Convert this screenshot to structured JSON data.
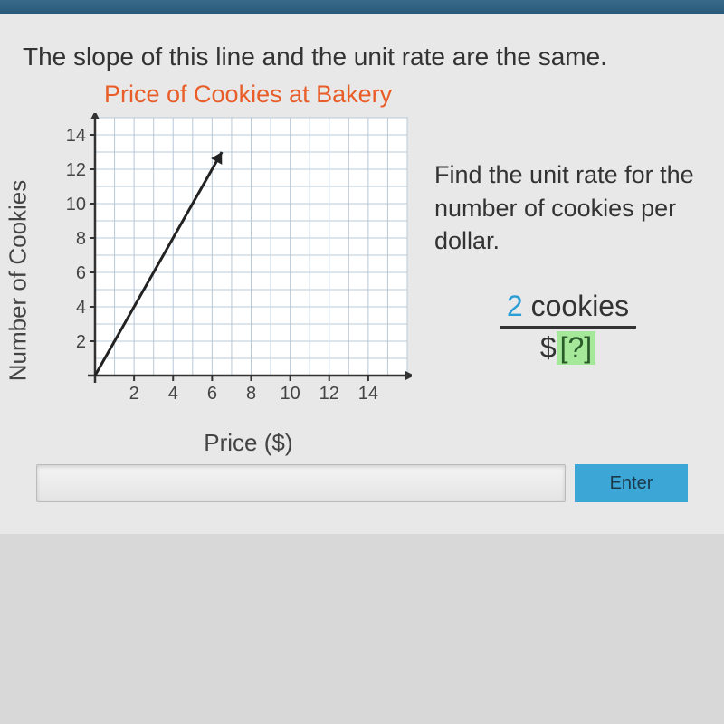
{
  "top_text": "The slope of this line and the unit rate are the same.",
  "chart": {
    "title": "Price of Cookies at Bakery",
    "x_label": "Price ($)",
    "y_label": "Number of Cookies",
    "x_ticks": [
      2,
      4,
      6,
      8,
      10,
      12,
      14
    ],
    "y_ticks": [
      2,
      4,
      6,
      8,
      10,
      12,
      14
    ],
    "x_max": 16,
    "y_max": 15,
    "grid_color": "#b8c8d8",
    "axis_color": "#333333",
    "bg_color": "#ffffff",
    "line_color": "#222222",
    "line_points": [
      [
        0,
        0
      ],
      [
        6.5,
        13
      ]
    ],
    "arrow": true
  },
  "right": {
    "text": "Find the unit rate for the number of cookies per dollar.",
    "numerator_value": "2",
    "numerator_unit": "cookies",
    "denom_prefix": "$",
    "denom_unknown": "[?]"
  },
  "enter_label": "Enter"
}
